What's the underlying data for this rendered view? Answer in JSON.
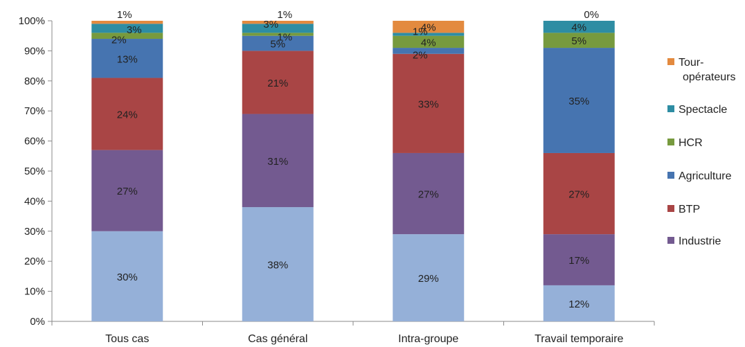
{
  "chart_data": {
    "type": "bar",
    "stacked": true,
    "categories": [
      "Tous cas",
      "Cas général",
      "Intra-groupe",
      "Travail temporaire"
    ],
    "ylim": [
      0,
      100
    ],
    "y_ticks": [
      "0%",
      "10%",
      "20%",
      "30%",
      "40%",
      "50%",
      "60%",
      "70%",
      "80%",
      "90%",
      "100%"
    ],
    "legend_placement": "right",
    "series": [
      {
        "name": "",
        "color": "#95B0D8",
        "values": [
          30,
          38,
          29,
          12
        ],
        "labels": [
          "30%",
          "38%",
          "29%",
          "12%"
        ]
      },
      {
        "name": "Industrie",
        "color": "#735A90",
        "values": [
          27,
          31,
          27,
          17
        ],
        "labels": [
          "27%",
          "31%",
          "27%",
          "17%"
        ]
      },
      {
        "name": "BTP",
        "color": "#A94545",
        "values": [
          24,
          21,
          33,
          27
        ],
        "labels": [
          "24%",
          "21%",
          "33%",
          "27%"
        ]
      },
      {
        "name": "Agriculture",
        "color": "#4674B0",
        "values": [
          13,
          5,
          2,
          35
        ],
        "labels": [
          "13%",
          "5%",
          "2%",
          "35%"
        ]
      },
      {
        "name": "HCR",
        "color": "#779A3E",
        "values": [
          2,
          1,
          4,
          5
        ],
        "labels": [
          "2%",
          "1%",
          "4%",
          "5%"
        ]
      },
      {
        "name": "Spectacle",
        "color": "#2E8DA3",
        "values": [
          3,
          3,
          1,
          4
        ],
        "labels": [
          "3%",
          "3%",
          "1%",
          "4%"
        ]
      },
      {
        "name": "Tour-opérateurs",
        "color": "#E38A3F",
        "values": [
          1,
          1,
          4,
          0
        ],
        "labels": [
          "1%",
          "1%",
          "4%",
          "0%"
        ]
      }
    ],
    "legend": [
      {
        "lines": [
          "Tour-",
          "opérateurs"
        ],
        "color": "#E38A3F"
      },
      {
        "lines": [
          "Spectacle"
        ],
        "color": "#2E8DA3"
      },
      {
        "lines": [
          "HCR"
        ],
        "color": "#779A3E"
      },
      {
        "lines": [
          "Agriculture"
        ],
        "color": "#4674B0"
      },
      {
        "lines": [
          "BTP"
        ],
        "color": "#A94545"
      },
      {
        "lines": [
          "Industrie"
        ],
        "color": "#735A90"
      }
    ]
  }
}
